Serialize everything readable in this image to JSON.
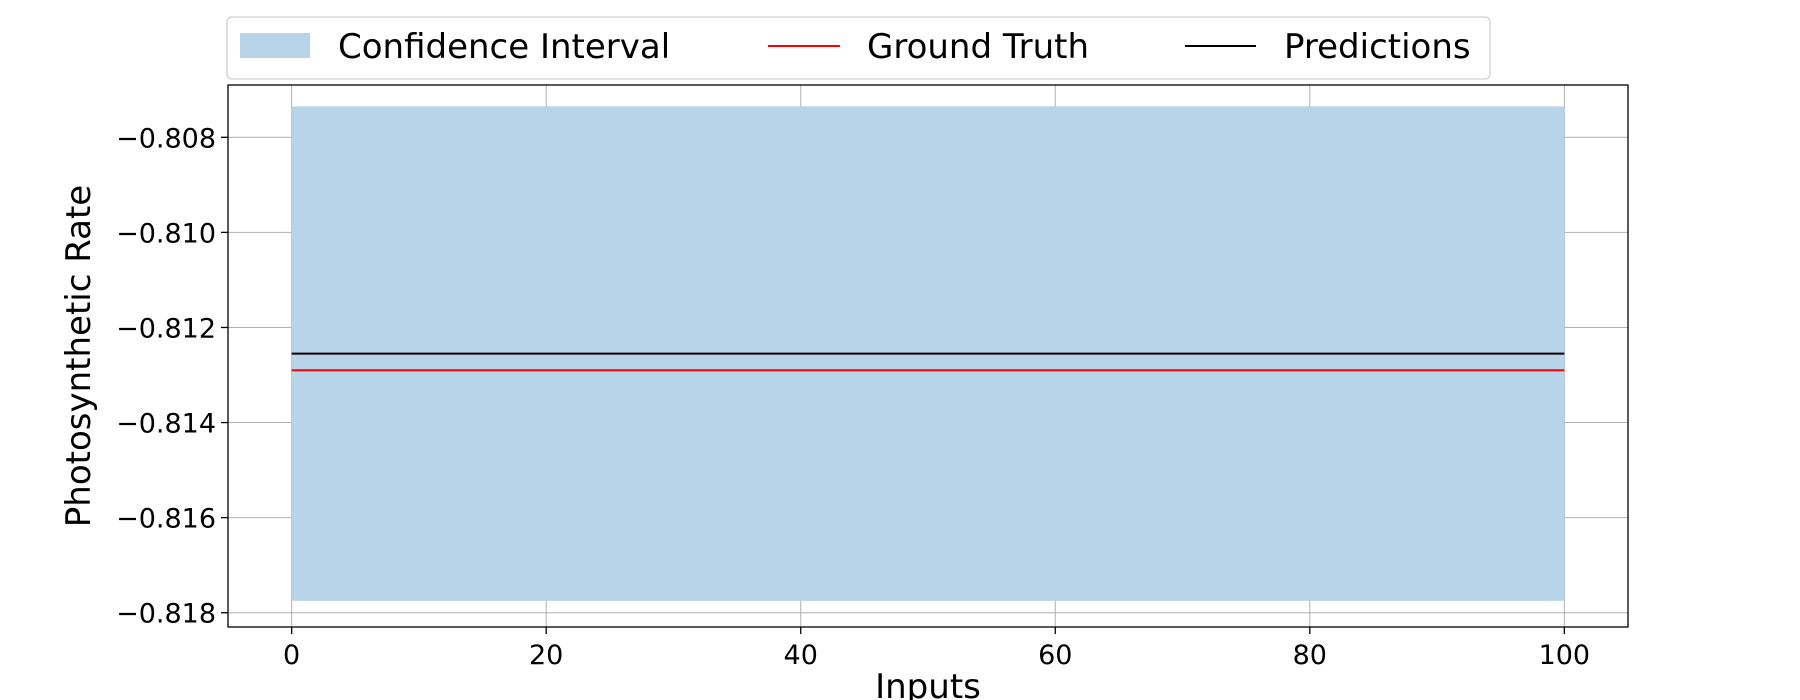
{
  "chart_data": {
    "type": "line",
    "title": "",
    "xlabel": "Inputs",
    "ylabel": "Photosynthetic Rate",
    "xlim": [
      -5,
      105
    ],
    "ylim": [
      -0.8183,
      -0.8069
    ],
    "x_ticks": [
      0,
      20,
      40,
      60,
      80,
      100
    ],
    "x_tick_labels": [
      "0",
      "20",
      "40",
      "60",
      "80",
      "100"
    ],
    "y_ticks": [
      -0.808,
      -0.81,
      -0.812,
      -0.814,
      -0.816,
      -0.818
    ],
    "y_tick_labels": [
      "−0.808",
      "−0.810",
      "−0.812",
      "−0.814",
      "−0.816",
      "−0.818"
    ],
    "grid": true,
    "legend_position": "top-center",
    "x": [
      0,
      100
    ],
    "series": [
      {
        "name": "Confidence Interval",
        "kind": "band",
        "lower": [
          -0.81775,
          -0.81775
        ],
        "upper": [
          -0.80735,
          -0.80735
        ],
        "color": "#b8d4e8"
      },
      {
        "name": "Ground Truth",
        "kind": "line",
        "values": [
          -0.8129,
          -0.8129
        ],
        "color": "#ff0000"
      },
      {
        "name": "Predictions",
        "kind": "line",
        "values": [
          -0.81255,
          -0.81255
        ],
        "color": "#000000"
      }
    ]
  }
}
